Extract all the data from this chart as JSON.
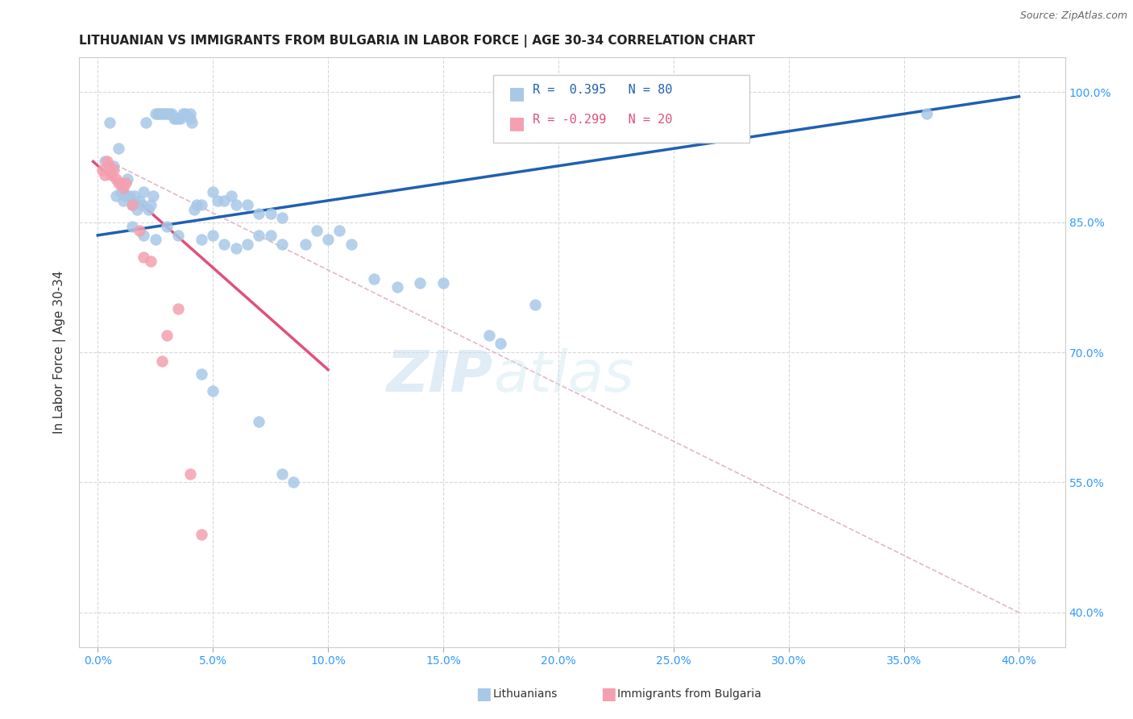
{
  "title": "LITHUANIAN VS IMMIGRANTS FROM BULGARIA IN LABOR FORCE | AGE 30-34 CORRELATION CHART",
  "source": "Source: ZipAtlas.com",
  "xlabel_ticks": [
    "0.0%",
    "5.0%",
    "10.0%",
    "15.0%",
    "20.0%",
    "25.0%",
    "30.0%",
    "35.0%",
    "40.0%"
  ],
  "xlabel_values": [
    0.0,
    5.0,
    10.0,
    15.0,
    20.0,
    25.0,
    30.0,
    35.0,
    40.0
  ],
  "ylabel": "In Labor Force | Age 30-34",
  "ylabel_ticks": [
    "40.0%",
    "55.0%",
    "70.0%",
    "85.0%",
    "100.0%"
  ],
  "ylabel_values": [
    40.0,
    55.0,
    70.0,
    85.0,
    100.0
  ],
  "ylim": [
    36.0,
    104.0
  ],
  "xlim": [
    -0.8,
    42.0
  ],
  "blue_color": "#a8c8e8",
  "pink_color": "#f4a0b0",
  "blue_line_color": "#2060b0",
  "pink_line_color": "#e0507a",
  "dashed_line_color": "#e0b0c0",
  "blue_scatter": [
    [
      0.3,
      92.0
    ],
    [
      0.5,
      96.5
    ],
    [
      0.7,
      91.5
    ],
    [
      0.8,
      88.0
    ],
    [
      0.9,
      93.5
    ],
    [
      1.0,
      88.5
    ],
    [
      1.1,
      87.5
    ],
    [
      1.2,
      88.0
    ],
    [
      1.3,
      90.0
    ],
    [
      1.4,
      88.0
    ],
    [
      1.5,
      87.0
    ],
    [
      1.6,
      88.0
    ],
    [
      1.7,
      86.5
    ],
    [
      1.8,
      87.5
    ],
    [
      1.9,
      87.0
    ],
    [
      2.0,
      88.5
    ],
    [
      2.1,
      96.5
    ],
    [
      2.2,
      86.5
    ],
    [
      2.3,
      87.0
    ],
    [
      2.4,
      88.0
    ],
    [
      2.5,
      97.5
    ],
    [
      2.6,
      97.5
    ],
    [
      2.7,
      97.5
    ],
    [
      2.8,
      97.5
    ],
    [
      2.9,
      97.5
    ],
    [
      3.0,
      97.5
    ],
    [
      3.1,
      97.5
    ],
    [
      3.2,
      97.5
    ],
    [
      3.3,
      97.0
    ],
    [
      3.4,
      97.0
    ],
    [
      3.5,
      97.0
    ],
    [
      3.6,
      97.0
    ],
    [
      3.7,
      97.5
    ],
    [
      3.8,
      97.5
    ],
    [
      4.0,
      97.5
    ],
    [
      4.0,
      97.0
    ],
    [
      4.1,
      96.5
    ],
    [
      4.2,
      86.5
    ],
    [
      4.3,
      87.0
    ],
    [
      4.5,
      87.0
    ],
    [
      5.0,
      88.5
    ],
    [
      5.2,
      87.5
    ],
    [
      5.5,
      87.5
    ],
    [
      5.8,
      88.0
    ],
    [
      6.0,
      87.0
    ],
    [
      6.5,
      87.0
    ],
    [
      7.0,
      86.0
    ],
    [
      7.5,
      86.0
    ],
    [
      8.0,
      85.5
    ],
    [
      1.5,
      84.5
    ],
    [
      2.0,
      83.5
    ],
    [
      2.5,
      83.0
    ],
    [
      3.0,
      84.5
    ],
    [
      3.5,
      83.5
    ],
    [
      4.5,
      83.0
    ],
    [
      5.0,
      83.5
    ],
    [
      5.5,
      82.5
    ],
    [
      6.0,
      82.0
    ],
    [
      6.5,
      82.5
    ],
    [
      7.0,
      83.5
    ],
    [
      7.5,
      83.5
    ],
    [
      8.0,
      82.5
    ],
    [
      9.0,
      82.5
    ],
    [
      9.5,
      84.0
    ],
    [
      10.0,
      83.0
    ],
    [
      10.5,
      84.0
    ],
    [
      11.0,
      82.5
    ],
    [
      12.0,
      78.5
    ],
    [
      13.0,
      77.5
    ],
    [
      14.0,
      78.0
    ],
    [
      15.0,
      78.0
    ],
    [
      17.0,
      72.0
    ],
    [
      17.5,
      71.0
    ],
    [
      4.5,
      67.5
    ],
    [
      5.0,
      65.5
    ],
    [
      7.0,
      62.0
    ],
    [
      8.0,
      56.0
    ],
    [
      8.5,
      55.0
    ],
    [
      19.0,
      75.5
    ],
    [
      36.0,
      97.5
    ]
  ],
  "pink_scatter": [
    [
      0.2,
      91.0
    ],
    [
      0.3,
      90.5
    ],
    [
      0.4,
      92.0
    ],
    [
      0.5,
      91.5
    ],
    [
      0.6,
      90.5
    ],
    [
      0.7,
      91.0
    ],
    [
      0.8,
      90.0
    ],
    [
      0.9,
      89.5
    ],
    [
      1.0,
      89.5
    ],
    [
      1.1,
      89.0
    ],
    [
      1.2,
      89.5
    ],
    [
      1.5,
      87.0
    ],
    [
      1.8,
      84.0
    ],
    [
      2.0,
      81.0
    ],
    [
      2.3,
      80.5
    ],
    [
      3.0,
      72.0
    ],
    [
      3.5,
      75.0
    ],
    [
      4.0,
      56.0
    ],
    [
      4.5,
      49.0
    ],
    [
      2.8,
      69.0
    ]
  ],
  "blue_line_x0": 0.0,
  "blue_line_x1": 40.0,
  "blue_line_y0": 83.5,
  "blue_line_y1": 99.5,
  "pink_line_x0": -0.2,
  "pink_line_x1": 10.0,
  "pink_line_y0": 92.0,
  "pink_line_y1": 68.0,
  "dashed_line_x0": 0.5,
  "dashed_line_x1": 40.0,
  "dashed_line_y0": 92.0,
  "dashed_line_y1": 40.0,
  "watermark_zip": "ZIP",
  "watermark_atlas": "atlas",
  "background_color": "#ffffff",
  "grid_color": "#d8d8d8"
}
